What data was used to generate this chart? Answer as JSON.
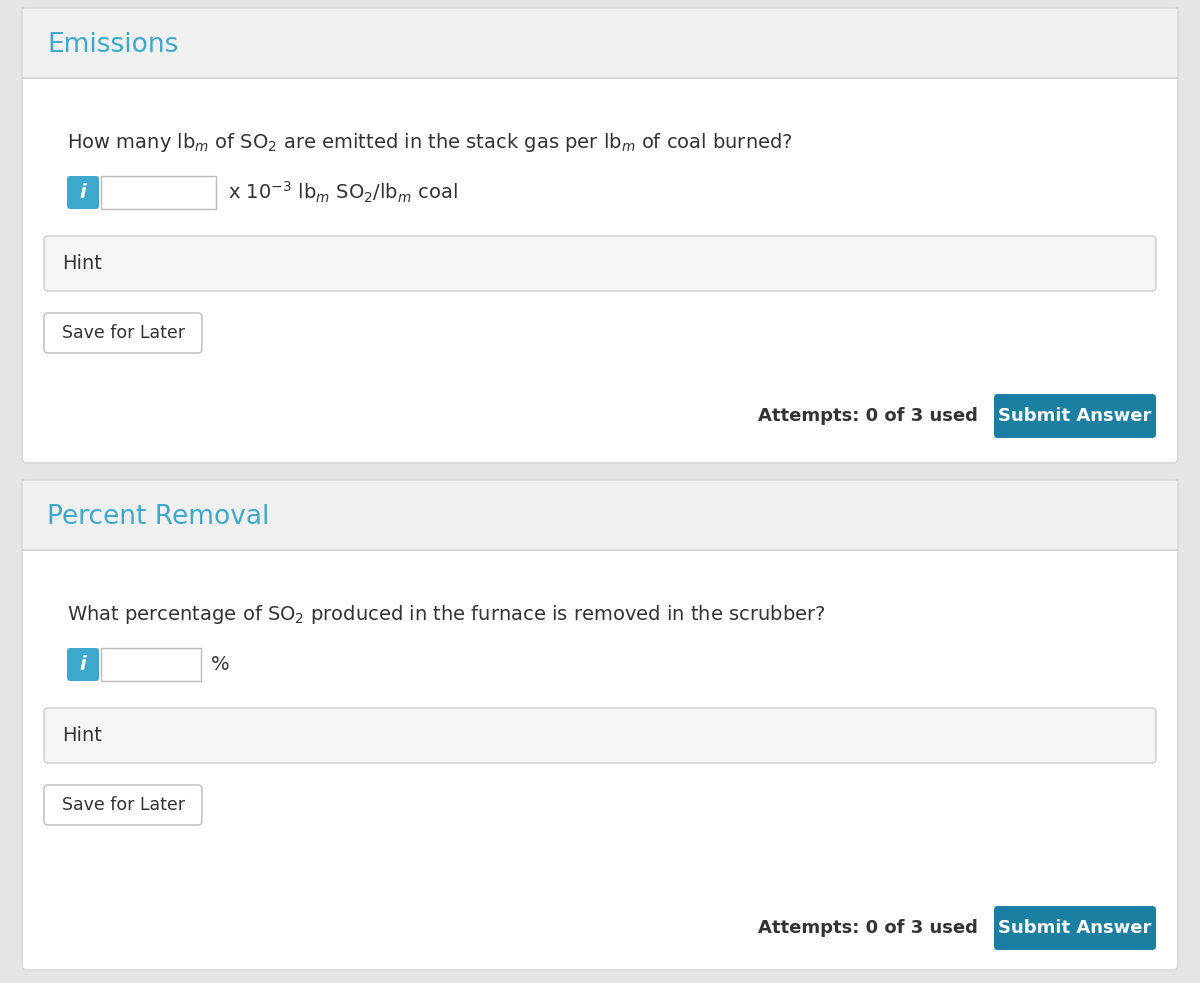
{
  "bg_color": "#e5e5e5",
  "outer_bg": "#e5e5e5",
  "card_bg": "#ffffff",
  "header_bg": "#f0f0f0",
  "header_border": "#d8d8d8",
  "title_color": "#3da8cc",
  "text_color": "#333333",
  "hint_bg": "#f5f5f5",
  "hint_border": "#cccccc",
  "save_btn_bg": "#ffffff",
  "save_btn_border": "#bbbbbb",
  "submit_btn_bg": "#1a7fa0",
  "submit_btn_text": "#ffffff",
  "info_btn_bg": "#3da8cc",
  "input_bg": "#ffffff",
  "input_border": "#bbbbbb",
  "attempts_color": "#333333",
  "s1_title": "Emissions",
  "s1_question": "How many lb$_{m}$ of SO$_{2}$ are emitted in the stack gas per lb$_{m}$ of coal burned?",
  "s1_unit": "x 10$^{-3}$ lb$_{m}$ SO$_{2}$/lb$_{m}$ coal",
  "s1_hint": "Hint",
  "s1_save": "Save for Later",
  "s1_attempts": "Attempts: 0 of 3 used",
  "s1_submit": "Submit Answer",
  "s2_title": "Percent Removal",
  "s2_question": "What percentage of SO$_{2}$ produced in the furnace is removed in the scrubber?",
  "s2_unit": "%",
  "s2_hint": "Hint",
  "s2_save": "Save for Later",
  "s2_attempts": "Attempts: 0 of 3 used",
  "s2_submit": "Submit Answer"
}
